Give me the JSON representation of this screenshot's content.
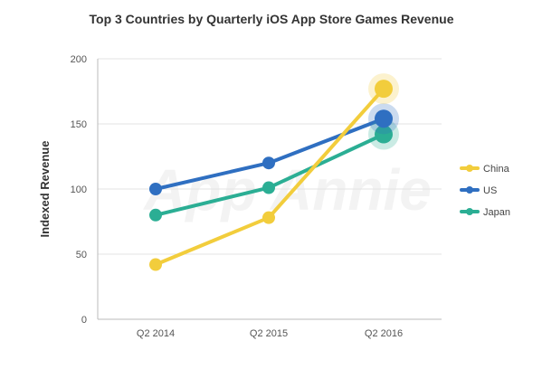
{
  "chart_data": {
    "type": "line",
    "title": "Top 3 Countries by Quarterly iOS App Store Games Revenue",
    "xlabel": "",
    "ylabel": "Indexed Revenue",
    "categories": [
      "Q2 2014",
      "Q2 2015",
      "Q2 2016"
    ],
    "ylim": [
      0,
      200
    ],
    "yticks": [
      0,
      50,
      100,
      150,
      200
    ],
    "grid": true,
    "legend_position": "right",
    "series": [
      {
        "name": "China",
        "color": "#F2CD3C",
        "values": [
          42,
          78,
          177
        ]
      },
      {
        "name": "US",
        "color": "#2F6FC1",
        "values": [
          100,
          120,
          154
        ]
      },
      {
        "name": "Japan",
        "color": "#2BAE94",
        "values": [
          80,
          101,
          142
        ]
      }
    ],
    "watermark": "App Annie"
  }
}
